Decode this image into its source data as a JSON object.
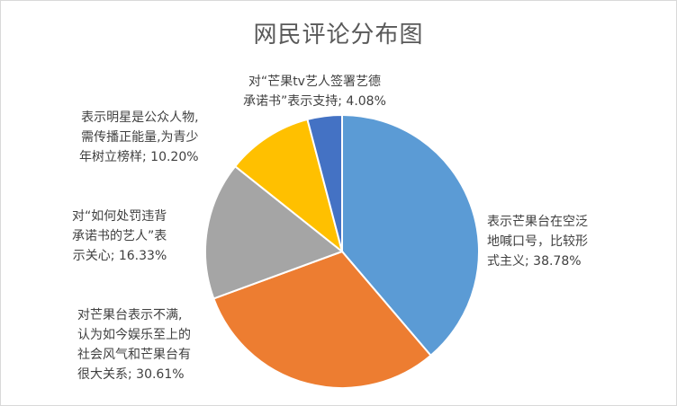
{
  "chart_data": {
    "type": "pie",
    "title": "网民评论分布图",
    "start_angle_deg": 0,
    "direction": "clockwise",
    "slices": [
      {
        "label_lines": [
          "表示芒果台在空泛",
          "地喊口号，比较形",
          "式主义; 38.78%"
        ],
        "value": 38.78,
        "color": "#5b9bd5"
      },
      {
        "label_lines": [
          "对芒果台表示不满,",
          "认为如今娱乐至上的",
          "社会风气和芒果台有",
          "很大关系; 30.61%"
        ],
        "value": 30.61,
        "color": "#ed7d31"
      },
      {
        "label_lines": [
          "对“如何处罚违背",
          "承诺书的艺人”表",
          "示关心; 16.33%"
        ],
        "value": 16.33,
        "color": "#a5a5a5"
      },
      {
        "label_lines": [
          "表示明星是公众人物,",
          "需传播正能量,为青少",
          "年树立榜样; 10.20%"
        ],
        "value": 10.2,
        "color": "#ffc000"
      },
      {
        "label_lines": [
          "对“芒果tv艺人签署艺德",
          "承诺书”表示支持; 4.08%"
        ],
        "value": 4.08,
        "color": "#4472c4"
      }
    ]
  }
}
